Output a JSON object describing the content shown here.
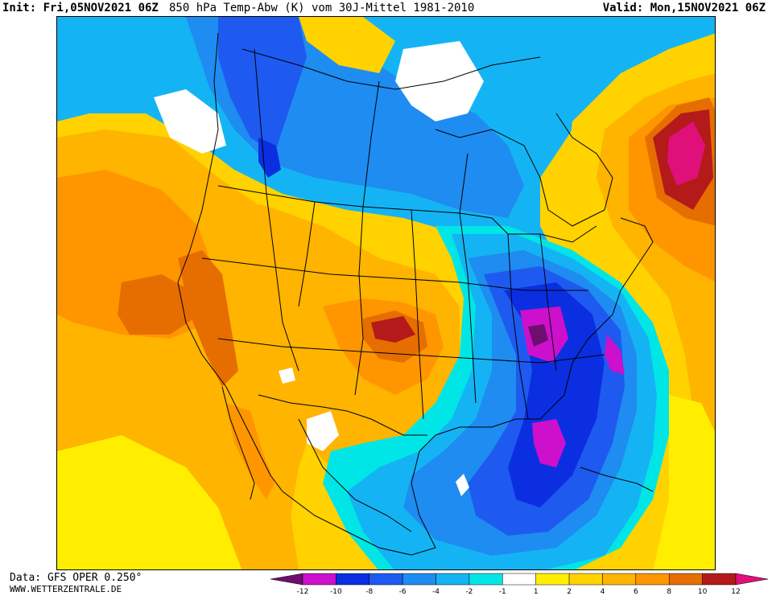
{
  "header": {
    "init": "Init: Fri,05NOV2021 06Z",
    "title": "850 hPa Temp-Abw (K) vom 30J-Mittel 1981-2010",
    "valid": "Valid: Mon,15NOV2021 06Z"
  },
  "footer": {
    "data_source": "Data: GFS OPER 0.250°",
    "website": "WWW.WETTERZENTRALE.DE"
  },
  "legend": {
    "ticks": [
      "-12",
      "-10",
      "-8",
      "-6",
      "-4",
      "-2",
      "-1",
      "1",
      "2",
      "4",
      "6",
      "8",
      "10",
      "12"
    ],
    "colors": [
      "#6e0f6e",
      "#cc10cc",
      "#0b2fe0",
      "#1e5af0",
      "#1e8cf0",
      "#14b4f4",
      "#00e6e6",
      "#ffffff",
      "#ffee00",
      "#ffd200",
      "#ffb400",
      "#ff9600",
      "#e66e00",
      "#b41a1a",
      "#e0107a"
    ]
  },
  "map": {
    "colors": {
      "neg12": "#6e0f6e",
      "neg10": "#cc10cc",
      "neg8": "#0b2fe0",
      "neg6": "#1e5af0",
      "neg4": "#1e8cf0",
      "neg2": "#14b4f4",
      "neg1": "#00e6e6",
      "zero": "#ffffff",
      "pos1": "#ffee00",
      "pos2": "#ffd200",
      "pos4": "#ffb400",
      "pos6": "#ff9600",
      "pos8": "#e66e00",
      "pos10": "#b41a1a",
      "pos12": "#e0107a"
    }
  }
}
